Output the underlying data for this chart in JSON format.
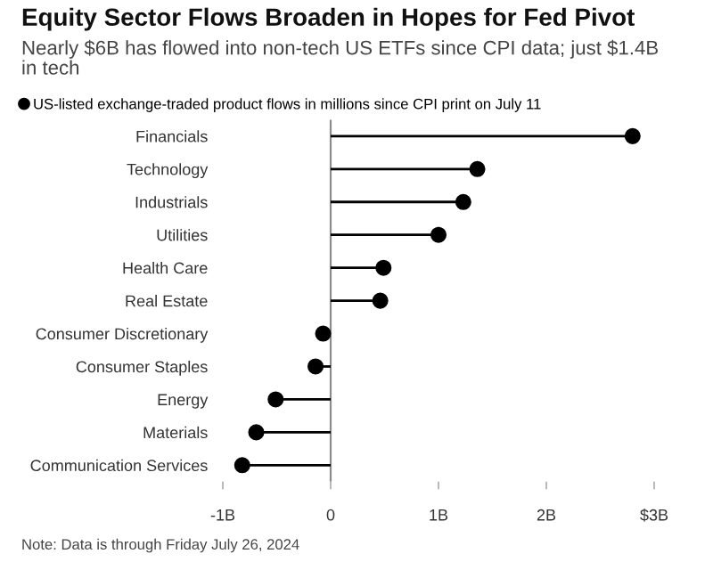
{
  "chart_data": {
    "type": "lollipop",
    "orientation": "horizontal",
    "title": "Equity Sector Flows Broaden in Hopes for Fed Pivot",
    "subtitle": "Nearly $6B has flowed into non-tech US ETFs since CPI data; just $1.4B in tech",
    "categories": [
      "Financials",
      "Technology",
      "Industrials",
      "Utilities",
      "Health Care",
      "Real Estate",
      "Consumer Discretionary",
      "Consumer Staples",
      "Energy",
      "Materials",
      "Communication Services"
    ],
    "series": [
      {
        "name": "US-listed exchange-traded product flows in millions since CPI print on July 11",
        "color": "#000000",
        "values": [
          2.8,
          1.36,
          1.23,
          1.0,
          0.49,
          0.46,
          -0.07,
          -0.14,
          -0.51,
          -0.69,
          -0.82
        ]
      }
    ],
    "xlim": [
      -1,
      3
    ],
    "xticks": [
      {
        "value": -1,
        "label": "-1B"
      },
      0,
      {
        "value": 1,
        "label": "1B"
      },
      {
        "value": 2,
        "label": "2B"
      },
      {
        "value": 3,
        "label": "$3B"
      }
    ],
    "ref_lines": [
      {
        "axis": "x",
        "value": 0,
        "color": "#8c8c8c"
      }
    ],
    "marker": "circle",
    "legend": "top left",
    "grid": false,
    "annotations": [
      "Note: Data is through Friday July 26, 2024"
    ]
  }
}
